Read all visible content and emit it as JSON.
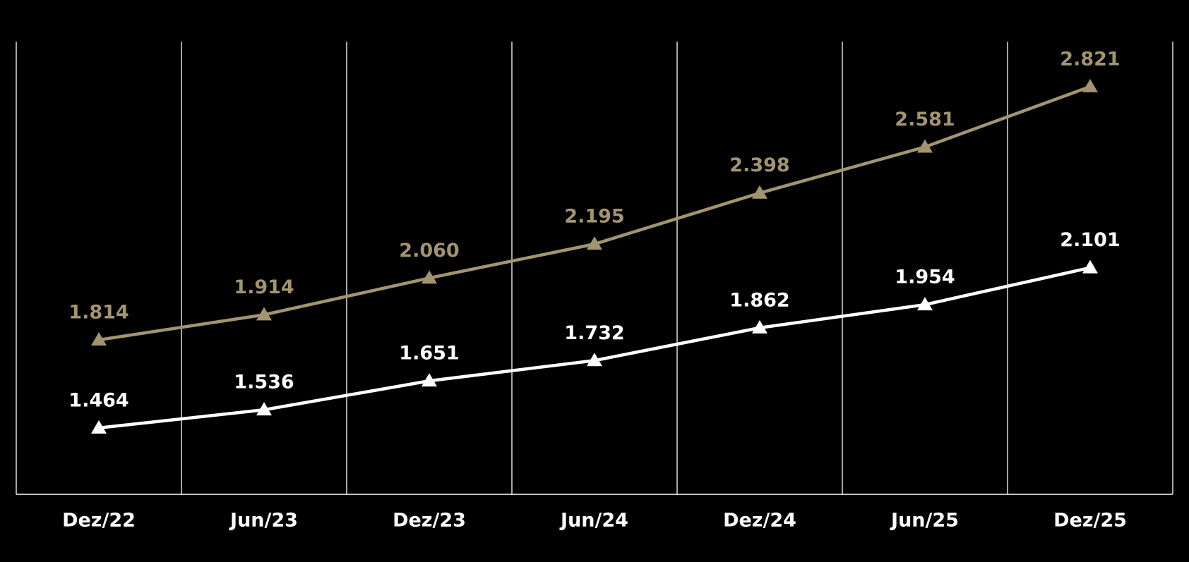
{
  "chart_data": {
    "type": "line",
    "categories": [
      "Dez/22",
      "Jun/23",
      "Dez/23",
      "Jun/24",
      "Dez/24",
      "Jun/25",
      "Dez/25"
    ],
    "series": [
      {
        "color": "#a39470",
        "values": [
          1814,
          1914,
          2060,
          2195,
          2398,
          2581,
          2821
        ],
        "value_labels": [
          "1.814",
          "1.914",
          "2.060",
          "2.195",
          "2.398",
          "2.581",
          "2.821"
        ]
      },
      {
        "color": "#ffffff",
        "values": [
          1464,
          1536,
          1651,
          1732,
          1862,
          1954,
          2101
        ],
        "value_labels": [
          "1.464",
          "1.536",
          "1.651",
          "1.732",
          "1.862",
          "1.954",
          "2.101"
        ]
      }
    ],
    "ylim": [
      1200,
      3000
    ]
  }
}
